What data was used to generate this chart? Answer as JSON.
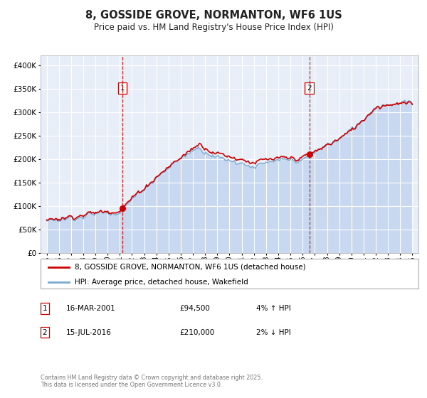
{
  "title": "8, GOSSIDE GROVE, NORMANTON, WF6 1US",
  "subtitle": "Price paid vs. HM Land Registry's House Price Index (HPI)",
  "title_fontsize": 10.5,
  "subtitle_fontsize": 8.5,
  "background_color": "#ffffff",
  "plot_bg_color": "#e8eef8",
  "grid_color": "#ffffff",
  "hpi_line_color": "#7aaad0",
  "hpi_fill_color": "#c8d8f0",
  "price_color": "#cc0000",
  "marker_color": "#cc0000",
  "vline_color": "#cc0000",
  "sale1_x": 2001.21,
  "sale1_y": 94500,
  "sale1_label": "1",
  "sale1_date": "16-MAR-2001",
  "sale1_price": "£94,500",
  "sale1_hpi": "4% ↑ HPI",
  "sale2_x": 2016.54,
  "sale2_y": 210000,
  "sale2_label": "2",
  "sale2_date": "15-JUL-2016",
  "sale2_price": "£210,000",
  "sale2_hpi": "2% ↓ HPI",
  "legend_entry1": "8, GOSSIDE GROVE, NORMANTON, WF6 1US (detached house)",
  "legend_entry2": "HPI: Average price, detached house, Wakefield",
  "footer": "Contains HM Land Registry data © Crown copyright and database right 2025.\nThis data is licensed under the Open Government Licence v3.0.",
  "ylim": [
    0,
    420000
  ],
  "xlim": [
    1994.5,
    2025.5
  ],
  "yticks": [
    0,
    50000,
    100000,
    150000,
    200000,
    250000,
    300000,
    350000,
    400000
  ],
  "ytick_labels": [
    "£0",
    "£50K",
    "£100K",
    "£150K",
    "£200K",
    "£250K",
    "£300K",
    "£350K",
    "£400K"
  ],
  "xticks": [
    1995,
    1996,
    1997,
    1998,
    1999,
    2000,
    2001,
    2002,
    2003,
    2004,
    2005,
    2006,
    2007,
    2008,
    2009,
    2010,
    2011,
    2012,
    2013,
    2014,
    2015,
    2016,
    2017,
    2018,
    2019,
    2020,
    2021,
    2022,
    2023,
    2024,
    2025
  ]
}
